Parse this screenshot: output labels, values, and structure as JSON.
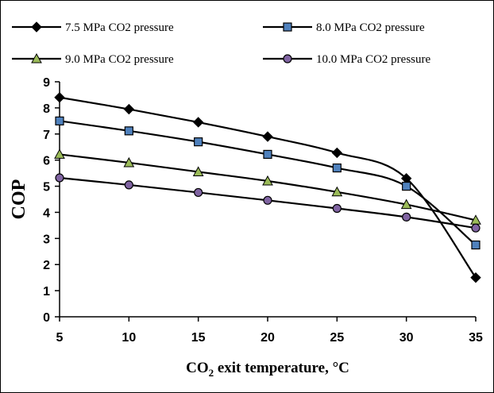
{
  "chart_data": {
    "type": "line",
    "xlabel_main": "CO",
    "xlabel_sub": "2",
    "xlabel_rest": " exit temperature, °C",
    "ylabel": "COP",
    "x": [
      5,
      10,
      15,
      20,
      25,
      30,
      35
    ],
    "x_ticks": [
      "5",
      "10",
      "15",
      "20",
      "25",
      "30",
      "35"
    ],
    "y_ticks": [
      "0",
      "1",
      "2",
      "3",
      "4",
      "5",
      "6",
      "7",
      "8",
      "9"
    ],
    "xlim": [
      5,
      35
    ],
    "ylim": [
      0,
      9
    ],
    "grid": false,
    "legend_position": "top",
    "series": [
      {
        "name": "7.5 MPa CO2 pressure",
        "values": [
          8.4,
          7.95,
          7.45,
          6.9,
          6.28,
          5.3,
          1.5
        ],
        "marker": "diamond",
        "marker_color": "#000000"
      },
      {
        "name": "8.0 MPa CO2 pressure",
        "values": [
          7.5,
          7.12,
          6.7,
          6.22,
          5.7,
          5.0,
          2.75
        ],
        "marker": "square",
        "marker_color": "#4f81bd"
      },
      {
        "name": "9.0 MPa CO2 pressure",
        "values": [
          6.22,
          5.9,
          5.55,
          5.2,
          4.78,
          4.3,
          3.7
        ],
        "marker": "triangle",
        "marker_color": "#9bbb59"
      },
      {
        "name": "10.0 MPa CO2 pressure",
        "values": [
          5.32,
          5.05,
          4.76,
          4.46,
          4.15,
          3.82,
          3.4
        ],
        "marker": "circle",
        "marker_color": "#8064a2"
      }
    ]
  }
}
